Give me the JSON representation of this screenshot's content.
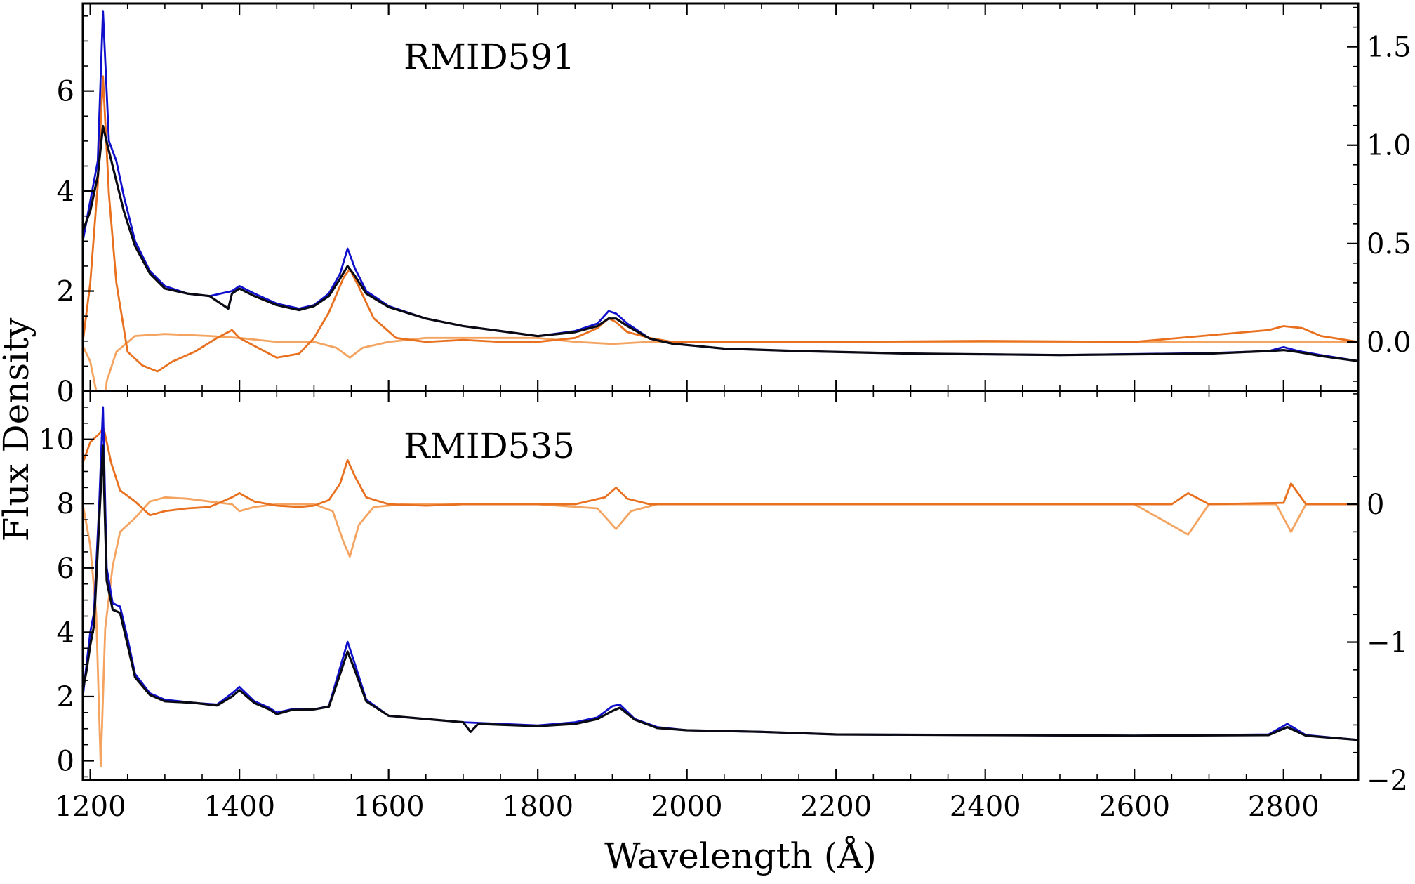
{
  "chart_data": {
    "type": "line",
    "xlabel": "Wavelength (Å)",
    "ylabel": "Flux Density",
    "xlim": [
      1190,
      2900
    ],
    "xticks": [
      1200,
      1400,
      1600,
      1800,
      2000,
      2200,
      2400,
      2600,
      2800
    ],
    "xtick_labels": [
      "1200",
      "1400",
      "1600",
      "1800",
      "2000",
      "2200",
      "2400",
      "2600",
      "2800"
    ],
    "grid": false,
    "colors": {
      "blue": "#1010cc",
      "black": "#0a0a14",
      "dark_orange": "#e8701e",
      "light_orange": "#f4a460"
    },
    "panels": [
      {
        "title": "RMID591",
        "ylim": [
          0,
          7.75
        ],
        "yticks": [
          0,
          2,
          4,
          6
        ],
        "ytick_labels": [
          "0",
          "2",
          "4",
          "6"
        ],
        "y2lim": [
          -0.25,
          1.72
        ],
        "y2ticks": [
          0.0,
          0.5,
          1.0,
          1.5
        ],
        "y2tick_labels": [
          "0.0",
          "0.5",
          "1.0",
          "1.5"
        ],
        "series": [
          {
            "color": "blue",
            "axis": "left",
            "x": [
              1190,
              1200,
              1210,
              1217,
              1225,
              1235,
              1245,
              1260,
              1280,
              1300,
              1330,
              1360,
              1390,
              1400,
              1420,
              1450,
              1480,
              1500,
              1520,
              1535,
              1545,
              1555,
              1570,
              1600,
              1650,
              1700,
              1750,
              1800,
              1850,
              1880,
              1895,
              1905,
              1920,
              1950,
              1980,
              2050,
              2150,
              2300,
              2500,
              2700,
              2780,
              2800,
              2820,
              2850,
              2900
            ],
            "y": [
              3.0,
              3.8,
              4.6,
              7.6,
              5.0,
              4.6,
              3.9,
              3.0,
              2.4,
              2.1,
              1.95,
              1.9,
              2.0,
              2.1,
              1.95,
              1.75,
              1.65,
              1.72,
              1.95,
              2.35,
              2.85,
              2.45,
              2.0,
              1.7,
              1.45,
              1.3,
              1.2,
              1.1,
              1.2,
              1.35,
              1.6,
              1.55,
              1.35,
              1.05,
              0.95,
              0.85,
              0.8,
              0.75,
              0.72,
              0.76,
              0.8,
              0.88,
              0.8,
              0.72,
              0.6
            ]
          },
          {
            "color": "black",
            "axis": "left",
            "x": [
              1190,
              1200,
              1210,
              1217,
              1225,
              1235,
              1245,
              1260,
              1280,
              1300,
              1330,
              1360,
              1385,
              1390,
              1400,
              1420,
              1450,
              1480,
              1500,
              1520,
              1535,
              1545,
              1555,
              1570,
              1600,
              1650,
              1700,
              1750,
              1800,
              1850,
              1880,
              1895,
              1905,
              1920,
              1950,
              1980,
              2050,
              2150,
              2300,
              2500,
              2700,
              2780,
              2800,
              2820,
              2850,
              2900
            ],
            "y": [
              3.2,
              3.6,
              4.3,
              5.3,
              4.8,
              4.2,
              3.6,
              2.9,
              2.35,
              2.05,
              1.95,
              1.9,
              1.65,
              1.95,
              2.05,
              1.9,
              1.72,
              1.62,
              1.7,
              1.9,
              2.25,
              2.5,
              2.3,
              1.95,
              1.68,
              1.45,
              1.3,
              1.2,
              1.1,
              1.18,
              1.3,
              1.45,
              1.45,
              1.3,
              1.05,
              0.95,
              0.85,
              0.8,
              0.75,
              0.72,
              0.75,
              0.8,
              0.82,
              0.78,
              0.7,
              0.6
            ]
          },
          {
            "color": "dark_orange",
            "axis": "right",
            "x": [
              1190,
              1200,
              1210,
              1217,
              1225,
              1235,
              1250,
              1270,
              1290,
              1310,
              1340,
              1370,
              1390,
              1400,
              1420,
              1450,
              1480,
              1500,
              1520,
              1540,
              1548,
              1560,
              1580,
              1610,
              1650,
              1700,
              1750,
              1800,
              1850,
              1880,
              1895,
              1905,
              1920,
              1950,
              1980,
              2050,
              2200,
              2400,
              2600,
              2780,
              2800,
              2825,
              2850,
              2900
            ],
            "y": [
              0.0,
              0.3,
              0.8,
              1.35,
              0.75,
              0.3,
              -0.05,
              -0.12,
              -0.15,
              -0.1,
              -0.05,
              0.02,
              0.06,
              0.02,
              -0.02,
              -0.08,
              -0.06,
              0.02,
              0.15,
              0.33,
              0.37,
              0.28,
              0.12,
              0.02,
              0.0,
              0.01,
              0.0,
              0.0,
              0.02,
              0.07,
              0.12,
              0.1,
              0.05,
              0.02,
              0.0,
              0.0,
              0.0,
              0.005,
              0.0,
              0.06,
              0.08,
              0.07,
              0.03,
              0.0
            ]
          },
          {
            "color": "light_orange",
            "axis": "right",
            "x": [
              1190,
              1200,
              1208,
              1215,
              1222,
              1235,
              1260,
              1300,
              1360,
              1400,
              1450,
              1500,
              1530,
              1548,
              1565,
              1600,
              1650,
              1700,
              1750,
              1800,
              1850,
              1900,
              1950,
              2000,
              2200,
              2400,
              2600,
              2800,
              2900
            ],
            "y": [
              -0.02,
              -0.1,
              -0.25,
              -0.6,
              -0.2,
              -0.05,
              0.03,
              0.04,
              0.03,
              0.02,
              0.0,
              0.0,
              -0.03,
              -0.08,
              -0.03,
              0.0,
              0.02,
              0.02,
              0.02,
              0.02,
              0.0,
              -0.01,
              0.0,
              0.0,
              0.0,
              0.0,
              0.0,
              0.0,
              0.0
            ]
          }
        ]
      },
      {
        "title": "RMID535",
        "ylim": [
          -0.6,
          11.5
        ],
        "yticks": [
          0,
          2,
          4,
          6,
          8,
          10
        ],
        "ytick_labels": [
          "0",
          "2",
          "4",
          "6",
          "8",
          "10"
        ],
        "y2lim": [
          -2.0,
          0.82
        ],
        "y2ticks": [
          -2,
          -1,
          0
        ],
        "y2tick_labels": [
          "−2",
          "−1",
          "0"
        ],
        "series": [
          {
            "color": "blue",
            "axis": "left",
            "x": [
              1190,
              1195,
              1200,
              1205,
              1212,
              1217,
              1222,
              1230,
              1240,
              1250,
              1260,
              1280,
              1300,
              1340,
              1370,
              1390,
              1400,
              1420,
              1440,
              1450,
              1470,
              1500,
              1520,
              1535,
              1545,
              1555,
              1570,
              1600,
              1650,
              1700,
              1750,
              1800,
              1850,
              1880,
              1900,
              1910,
              1930,
              1960,
              2000,
              2100,
              2200,
              2400,
              2600,
              2780,
              2805,
              2830,
              2900
            ],
            "y": [
              2.0,
              3.0,
              4.0,
              4.6,
              8.0,
              11.0,
              6.0,
              4.9,
              4.8,
              3.8,
              2.7,
              2.1,
              1.9,
              1.8,
              1.75,
              2.1,
              2.3,
              1.85,
              1.65,
              1.5,
              1.6,
              1.6,
              1.7,
              2.9,
              3.7,
              3.0,
              1.9,
              1.4,
              1.3,
              1.2,
              1.15,
              1.1,
              1.2,
              1.35,
              1.7,
              1.75,
              1.3,
              1.05,
              0.95,
              0.9,
              0.82,
              0.8,
              0.78,
              0.82,
              1.15,
              0.8,
              0.65
            ]
          },
          {
            "color": "black",
            "axis": "left",
            "x": [
              1190,
              1195,
              1200,
              1205,
              1212,
              1217,
              1222,
              1230,
              1240,
              1250,
              1260,
              1280,
              1300,
              1340,
              1370,
              1390,
              1400,
              1420,
              1440,
              1450,
              1470,
              1500,
              1520,
              1535,
              1545,
              1555,
              1570,
              1600,
              1650,
              1700,
              1710,
              1720,
              1750,
              1800,
              1850,
              1880,
              1900,
              1910,
              1930,
              1960,
              2000,
              2100,
              2200,
              2400,
              2600,
              2780,
              2805,
              2830,
              2900
            ],
            "y": [
              2.2,
              2.8,
              3.6,
              4.2,
              7.5,
              9.8,
              5.6,
              4.7,
              4.6,
              3.6,
              2.6,
              2.05,
              1.85,
              1.8,
              1.72,
              2.0,
              2.2,
              1.8,
              1.6,
              1.45,
              1.58,
              1.6,
              1.68,
              2.7,
              3.4,
              2.8,
              1.85,
              1.4,
              1.3,
              1.2,
              0.9,
              1.15,
              1.12,
              1.08,
              1.15,
              1.3,
              1.55,
              1.65,
              1.28,
              1.02,
              0.95,
              0.9,
              0.82,
              0.8,
              0.78,
              0.8,
              1.05,
              0.78,
              0.65
            ]
          },
          {
            "color": "dark_orange",
            "axis": "right",
            "x": [
              1190,
              1200,
              1210,
              1218,
              1228,
              1240,
              1260,
              1280,
              1300,
              1330,
              1360,
              1390,
              1400,
              1420,
              1450,
              1480,
              1500,
              1520,
              1535,
              1545,
              1555,
              1570,
              1600,
              1650,
              1700,
              1750,
              1800,
              1850,
              1890,
              1905,
              1920,
              1950,
              2000,
              2100,
              2300,
              2500,
              2650,
              2672,
              2700,
              2800,
              2810,
              2830,
              2900
            ],
            "y": [
              0.3,
              0.45,
              0.5,
              0.55,
              0.3,
              0.1,
              0.02,
              -0.08,
              -0.05,
              -0.03,
              -0.02,
              0.05,
              0.08,
              0.02,
              -0.01,
              -0.02,
              -0.01,
              0.03,
              0.15,
              0.32,
              0.2,
              0.05,
              0.0,
              -0.01,
              0.0,
              0.0,
              0.0,
              0.0,
              0.05,
              0.12,
              0.04,
              0.0,
              0.0,
              0.0,
              0.0,
              0.0,
              0.0,
              0.08,
              0.0,
              0.01,
              0.15,
              0.0,
              0.0
            ]
          },
          {
            "color": "light_orange",
            "axis": "right",
            "x": [
              1190,
              1200,
              1208,
              1214,
              1220,
              1230,
              1240,
              1260,
              1280,
              1300,
              1330,
              1360,
              1390,
              1400,
              1420,
              1450,
              1500,
              1525,
              1540,
              1548,
              1560,
              1580,
              1620,
              1700,
              1800,
              1880,
              1905,
              1925,
              1960,
              2000,
              2200,
              2400,
              2600,
              2672,
              2700,
              2790,
              2810,
              2830,
              2900
            ],
            "y": [
              0.0,
              -0.3,
              -0.8,
              -1.9,
              -0.9,
              -0.45,
              -0.2,
              -0.1,
              0.02,
              0.05,
              0.04,
              0.02,
              0.0,
              -0.05,
              -0.02,
              0.0,
              0.0,
              -0.05,
              -0.28,
              -0.38,
              -0.15,
              -0.02,
              0.0,
              0.0,
              0.0,
              -0.03,
              -0.18,
              -0.05,
              0.0,
              0.0,
              0.0,
              0.0,
              0.0,
              -0.22,
              0.0,
              0.0,
              -0.2,
              0.0,
              0.0
            ]
          }
        ]
      }
    ]
  }
}
